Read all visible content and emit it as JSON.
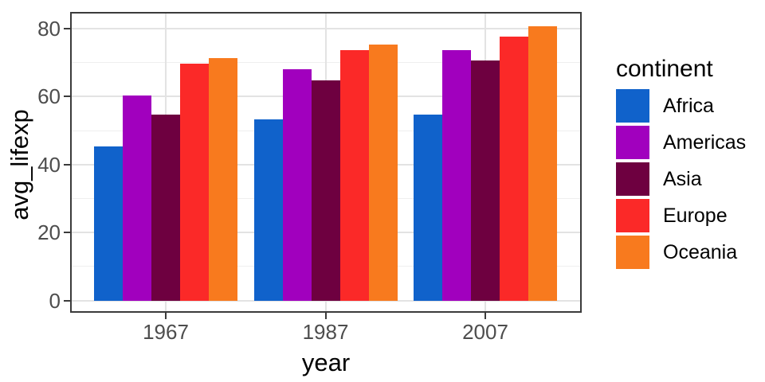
{
  "chart_data": {
    "type": "bar",
    "title": "",
    "xlabel": "year",
    "ylabel": "avg_lifexp",
    "categories": [
      "1967",
      "1987",
      "2007"
    ],
    "series": [
      {
        "name": "Africa",
        "color": "#1062CB",
        "values": [
          45.33,
          53.34,
          54.81
        ]
      },
      {
        "name": "Americas",
        "color": "#A100BE",
        "values": [
          60.41,
          68.09,
          73.61
        ]
      },
      {
        "name": "Asia",
        "color": "#6E0040",
        "values": [
          54.66,
          64.85,
          70.73
        ]
      },
      {
        "name": "Europe",
        "color": "#FB2928",
        "values": [
          69.74,
          73.64,
          77.65
        ]
      },
      {
        "name": "Oceania",
        "color": "#F87A1E",
        "values": [
          71.31,
          75.32,
          80.72
        ]
      }
    ],
    "y_ticks": [
      0,
      20,
      40,
      60,
      80
    ],
    "y_minor_ticks": [
      10,
      30,
      50,
      70
    ],
    "ylim": [
      0,
      80.72
    ],
    "panel_value_range": [
      -3.6,
      84.9
    ],
    "grid": "major+minor horizontal, major vertical at categories",
    "legend": {
      "title": "continent",
      "position": "right"
    },
    "theme": {
      "panel_border_color": "#3b3b3b",
      "grid_major_color": "#e3e3e3",
      "grid_minor_color": "#efefef",
      "tick_label_color": "#4d4d4d",
      "axis_title_color": "#000000",
      "background": "#ffffff"
    }
  }
}
